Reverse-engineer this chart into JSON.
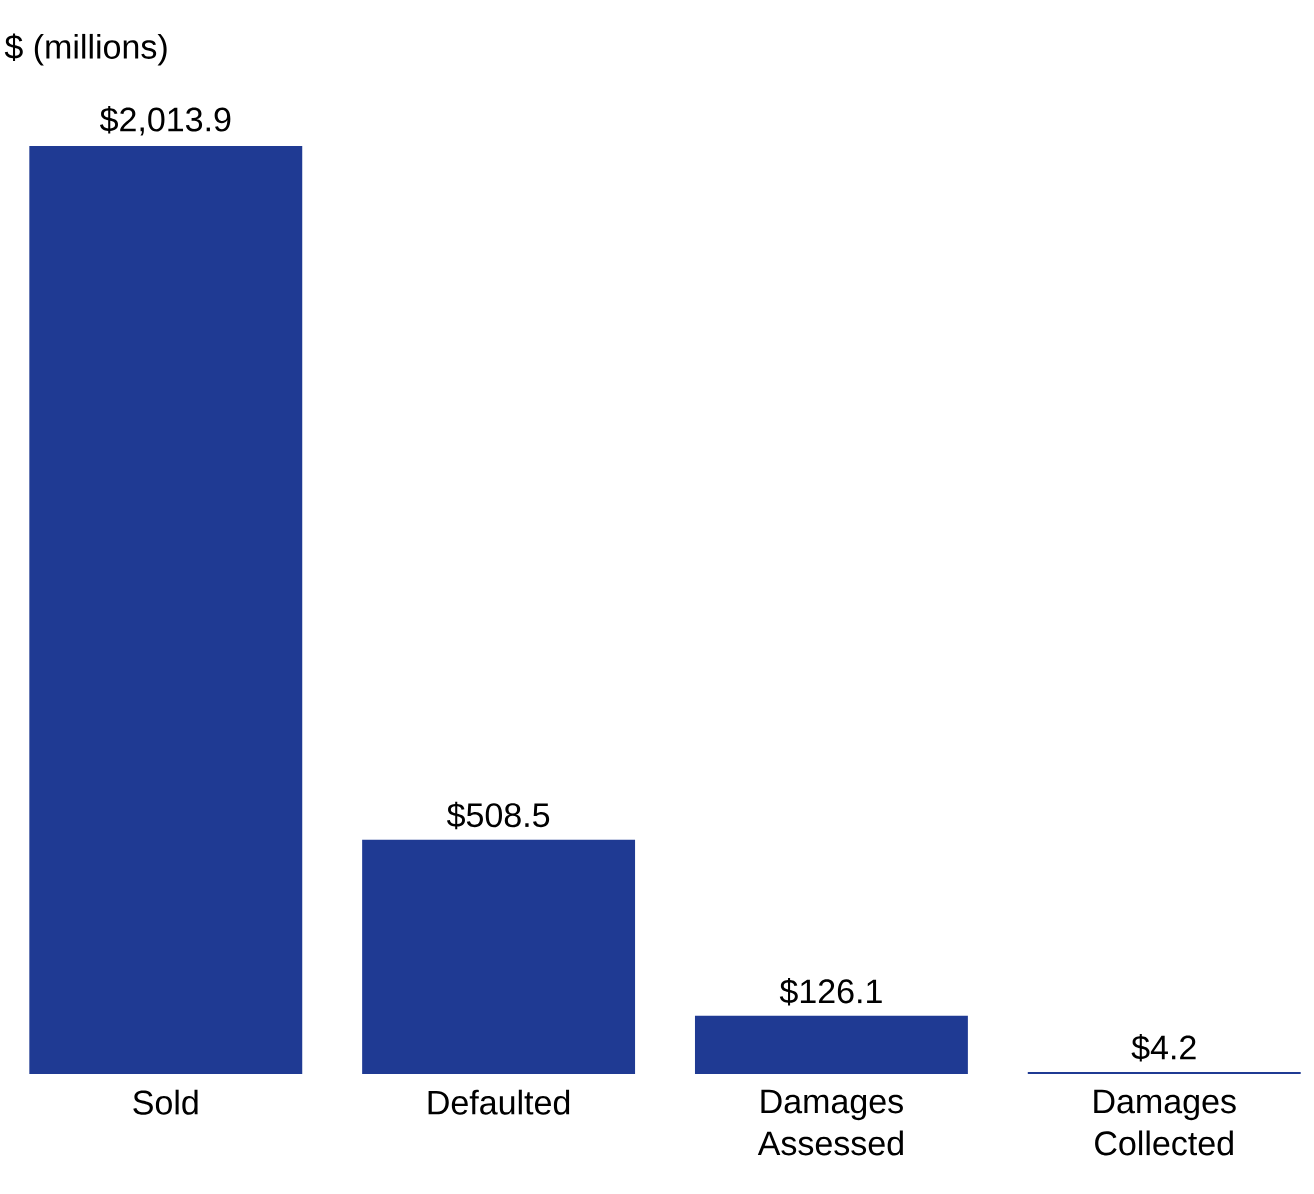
{
  "chart_data": {
    "type": "bar",
    "ylabel": "$ (millions)",
    "categories": [
      "Sold",
      "Defaulted",
      "Damages Assessed",
      "Damages Collected"
    ],
    "values": [
      2013.9,
      508.5,
      126.1,
      4.2
    ],
    "value_labels": [
      "$2,013.9",
      "$508.5",
      "$126.1",
      "$4.2"
    ],
    "color": "#1f3a93"
  }
}
